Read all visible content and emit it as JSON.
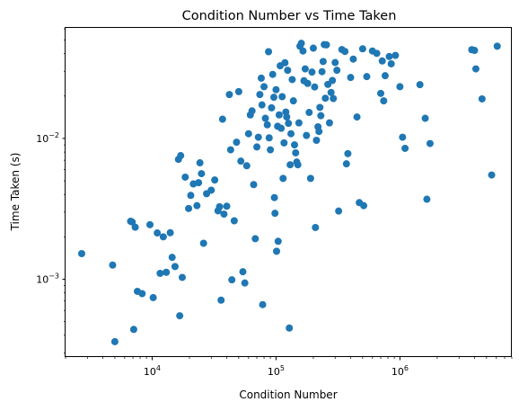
{
  "chart_data": {
    "type": "scatter",
    "title": "Condition Number vs Time Taken",
    "xlabel": "Condition Number",
    "ylabel": "Time Taken (s)",
    "xscale": "log",
    "yscale": "log",
    "xlim": [
      2000,
      8000000
    ],
    "ylim": [
      0.00028,
      0.061
    ],
    "grid": false,
    "marker_color": "#1f77b4",
    "x_ticks": [
      {
        "value": 10000,
        "base": "10",
        "exp": "4"
      },
      {
        "value": 100000,
        "base": "10",
        "exp": "5"
      },
      {
        "value": 1000000,
        "base": "10",
        "exp": "6"
      }
    ],
    "y_ticks": [
      {
        "value": 0.001,
        "base": "10",
        "exp": "−3"
      },
      {
        "value": 0.01,
        "base": "10",
        "exp": "−2"
      }
    ],
    "points": [
      [
        2700,
        0.00152
      ],
      [
        4800,
        0.00126
      ],
      [
        5000,
        0.00036
      ],
      [
        6700,
        0.00258
      ],
      [
        6900,
        0.00255
      ],
      [
        7100,
        0.00044
      ],
      [
        7300,
        0.00234
      ],
      [
        7600,
        0.00082
      ],
      [
        8300,
        0.00079
      ],
      [
        9600,
        0.00244
      ],
      [
        10200,
        0.00074
      ],
      [
        11000,
        0.00213
      ],
      [
        11600,
        0.0011
      ],
      [
        12300,
        0.002
      ],
      [
        13000,
        0.00112
      ],
      [
        14000,
        0.00214
      ],
      [
        14500,
        0.00143
      ],
      [
        15300,
        0.00123
      ],
      [
        16300,
        0.0071
      ],
      [
        16700,
        0.00055
      ],
      [
        17000,
        0.00755
      ],
      [
        17500,
        0.00103
      ],
      [
        18500,
        0.00531
      ],
      [
        19700,
        0.00318
      ],
      [
        20500,
        0.00394
      ],
      [
        21500,
        0.00475
      ],
      [
        23000,
        0.00333
      ],
      [
        23700,
        0.00485
      ],
      [
        24300,
        0.00671
      ],
      [
        25000,
        0.00562
      ],
      [
        26000,
        0.0018
      ],
      [
        27500,
        0.00405
      ],
      [
        30000,
        0.00429
      ],
      [
        32000,
        0.00507
      ],
      [
        34000,
        0.00306
      ],
      [
        35000,
        0.00327
      ],
      [
        36000,
        0.00071
      ],
      [
        37000,
        0.0137
      ],
      [
        38000,
        0.0029
      ],
      [
        40000,
        0.0033
      ],
      [
        42000,
        0.0205
      ],
      [
        43000,
        0.0083
      ],
      [
        44000,
        0.00099
      ],
      [
        46000,
        0.0026
      ],
      [
        48000,
        0.0094
      ],
      [
        50000,
        0.0215
      ],
      [
        52000,
        0.0069
      ],
      [
        54000,
        0.00113
      ],
      [
        56000,
        0.00094
      ],
      [
        58000,
        0.0064
      ],
      [
        60000,
        0.0108
      ],
      [
        62000,
        0.0147
      ],
      [
        64000,
        0.0157
      ],
      [
        66000,
        0.0047
      ],
      [
        68000,
        0.00194
      ],
      [
        70000,
        0.0087
      ],
      [
        72000,
        0.0102
      ],
      [
        74000,
        0.0205
      ],
      [
        76000,
        0.0268
      ],
      [
        77000,
        0.0173
      ],
      [
        78000,
        0.00066
      ],
      [
        80000,
        0.0233
      ],
      [
        82000,
        0.0139
      ],
      [
        85000,
        0.0125
      ],
      [
        87000,
        0.0413
      ],
      [
        88000,
        0.0101
      ],
      [
        90000,
        0.0083
      ],
      [
        92000,
        0.0165
      ],
      [
        94000,
        0.0285
      ],
      [
        96000,
        0.0196
      ],
      [
        97000,
        0.0038
      ],
      [
        98000,
        0.00294
      ],
      [
        100000,
        0.0222
      ],
      [
        101000,
        0.00158
      ],
      [
        103000,
        0.0122
      ],
      [
        104000,
        0.00186
      ],
      [
        106000,
        0.0147
      ],
      [
        108000,
        0.0328
      ],
      [
        110000,
        0.0118
      ],
      [
        112000,
        0.0198
      ],
      [
        114000,
        0.0052
      ],
      [
        116000,
        0.0093
      ],
      [
        118000,
        0.0345
      ],
      [
        120000,
        0.0154
      ],
      [
        122000,
        0.0142
      ],
      [
        124000,
        0.0305
      ],
      [
        126000,
        0.0128
      ],
      [
        128000,
        0.00045
      ],
      [
        130000,
        0.0065
      ],
      [
        132000,
        0.0108
      ],
      [
        135000,
        0.0262
      ],
      [
        138000,
        0.0185
      ],
      [
        141000,
        0.009
      ],
      [
        144000,
        0.0079
      ],
      [
        147000,
        0.0068
      ],
      [
        150000,
        0.0065
      ],
      [
        153000,
        0.0129
      ],
      [
        156000,
        0.0452
      ],
      [
        160000,
        0.0474
      ],
      [
        165000,
        0.0418
      ],
      [
        168000,
        0.0257
      ],
      [
        172000,
        0.0312
      ],
      [
        176000,
        0.0105
      ],
      [
        180000,
        0.0246
      ],
      [
        185000,
        0.0153
      ],
      [
        190000,
        0.0052
      ],
      [
        195000,
        0.0296
      ],
      [
        200000,
        0.0438
      ],
      [
        205000,
        0.0232
      ],
      [
        208000,
        0.00233
      ],
      [
        212000,
        0.0097
      ],
      [
        218000,
        0.0121
      ],
      [
        222000,
        0.0112
      ],
      [
        226000,
        0.0166
      ],
      [
        230000,
        0.0145
      ],
      [
        235000,
        0.0298
      ],
      [
        240000,
        0.0352
      ],
      [
        245000,
        0.0464
      ],
      [
        250000,
        0.0193
      ],
      [
        255000,
        0.0462
      ],
      [
        262000,
        0.0242
      ],
      [
        270000,
        0.0129
      ],
      [
        278000,
        0.0212
      ],
      [
        285000,
        0.0258
      ],
      [
        290000,
        0.0192
      ],
      [
        300000,
        0.0346
      ],
      [
        310000,
        0.0305
      ],
      [
        320000,
        0.00305
      ],
      [
        340000,
        0.0428
      ],
      [
        360000,
        0.0415
      ],
      [
        370000,
        0.0066
      ],
      [
        380000,
        0.0078
      ],
      [
        400000,
        0.0271
      ],
      [
        420000,
        0.0366
      ],
      [
        450000,
        0.0142
      ],
      [
        470000,
        0.0035
      ],
      [
        500000,
        0.0433
      ],
      [
        510000,
        0.00333
      ],
      [
        540000,
        0.0275
      ],
      [
        600000,
        0.0418
      ],
      [
        650000,
        0.0402
      ],
      [
        700000,
        0.0209
      ],
      [
        720000,
        0.0355
      ],
      [
        740000,
        0.0185
      ],
      [
        760000,
        0.0279
      ],
      [
        820000,
        0.0382
      ],
      [
        850000,
        0.0339
      ],
      [
        920000,
        0.0389
      ],
      [
        1000000,
        0.0233
      ],
      [
        1050000,
        0.0102
      ],
      [
        1100000,
        0.0085
      ],
      [
        1450000,
        0.0241
      ],
      [
        1600000,
        0.0139
      ],
      [
        1650000,
        0.0037
      ],
      [
        1750000,
        0.0092
      ],
      [
        3800000,
        0.0427
      ],
      [
        4000000,
        0.0422
      ],
      [
        4100000,
        0.0312
      ],
      [
        4600000,
        0.0191
      ],
      [
        5500000,
        0.0055
      ],
      [
        6100000,
        0.0452
      ]
    ]
  }
}
